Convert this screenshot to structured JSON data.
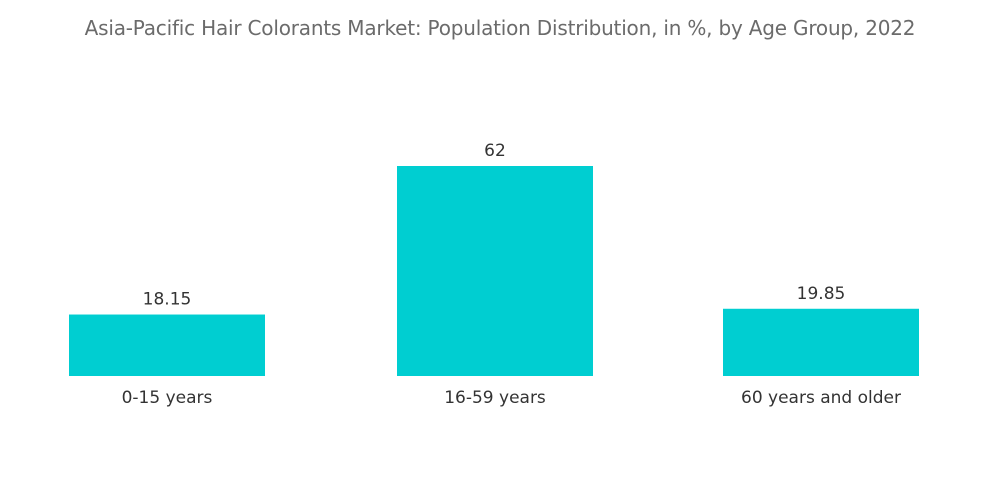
{
  "chart_data": {
    "type": "bar",
    "title": "Asia-Pacific Hair Colorants Market: Population Distribution, in %, by Age Group, 2022",
    "categories": [
      "0-15 years",
      "16-59 years",
      "60 years and older"
    ],
    "values": [
      18.15,
      62,
      19.85
    ],
    "value_labels": [
      "18.15",
      "62",
      "19.85"
    ],
    "xlabel": "",
    "ylabel": "",
    "ylim": [
      0,
      62
    ],
    "grid": false,
    "legend": "none",
    "bar_color": "#00CED1"
  }
}
